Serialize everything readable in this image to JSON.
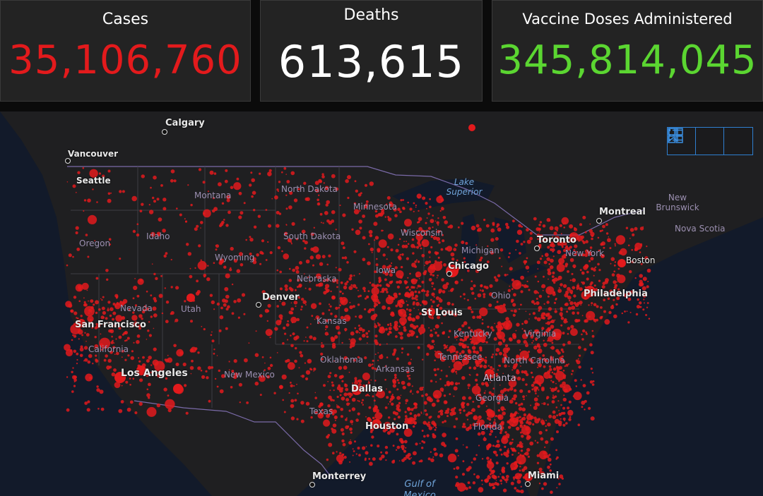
{
  "stats": {
    "cases": {
      "label": "Cases",
      "value": "35,106,760",
      "color": "#e31a1c"
    },
    "deaths": {
      "label": "Deaths",
      "value": "613,615",
      "color": "#ffffff"
    },
    "vaccines": {
      "label": "Vaccine Doses Administered",
      "value": "345,814,045",
      "color": "#5bd631"
    }
  },
  "map": {
    "states": [
      "Montana",
      "North Dakota",
      "Minnesota",
      "Wisconsin",
      "Michigan",
      "South Dakota",
      "Idaho",
      "Oregon",
      "Wyoming",
      "Iowa",
      "Nebraska",
      "Nevada",
      "Utah",
      "Kansas",
      "Ohio",
      "Kentucky",
      "Virginia",
      "California",
      "Oklahoma",
      "Arkansas",
      "Tennessee",
      "North Carolina",
      "New Mexico",
      "Georgia",
      "Texas",
      "Florida",
      "New York",
      "New Brunswick",
      "Nova Scotia"
    ],
    "cities": [
      "Calgary",
      "Vancouver",
      "Seattle",
      "Montreal",
      "Toronto",
      "Chicago",
      "Denver",
      "St Louis",
      "San Francisco",
      "Los Angeles",
      "Dallas",
      "Houston",
      "Atlanta",
      "Philadelphia",
      "Boston",
      "Monterrey",
      "Miami"
    ],
    "water": [
      "Lake Superior",
      "Gulf of Mexico"
    ],
    "dot_color": "#e31a1c"
  },
  "toolbar": {
    "icons": [
      "bookmark-icon",
      "legend-list-icon",
      "basemap-gallery-icon"
    ]
  }
}
